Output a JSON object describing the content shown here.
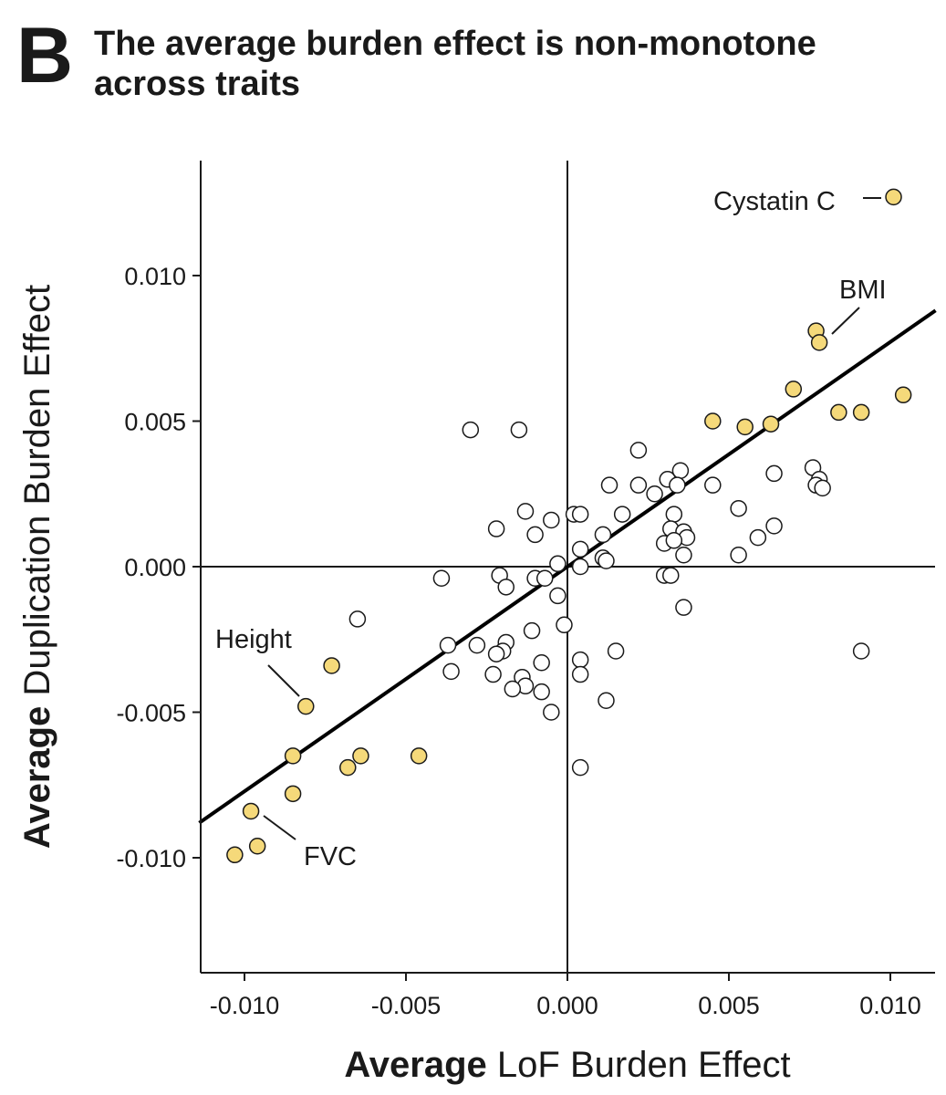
{
  "panel_label": "B",
  "title_lines": [
    "The average burden effect is non-monotone",
    "across traits"
  ],
  "colors": {
    "highlight": "#f5d97a",
    "normal": "#ffffff",
    "stroke": "#1a1a1a",
    "fit_line": "#000000"
  },
  "chart_data": {
    "type": "scatter",
    "title": "The average burden effect is non-monotone across traits",
    "xlabel_bold": "Average",
    "xlabel_rest": "LoF Burden Effect",
    "ylabel_bold": "Average",
    "ylabel_rest": "Duplication Burden Effect",
    "xlim": [
      -0.0114,
      0.0114
    ],
    "ylim": [
      -0.0139,
      0.0139
    ],
    "xticks": [
      -0.01,
      -0.005,
      0.0,
      0.005,
      0.01
    ],
    "xtick_labels": [
      "-0.010",
      "-0.005",
      "0.000",
      "0.005",
      "0.010"
    ],
    "yticks": [
      -0.01,
      -0.005,
      0.0,
      0.005,
      0.01
    ],
    "ytick_labels": [
      "-0.010",
      "-0.005",
      "0.000",
      "0.005",
      "0.010"
    ],
    "reference_lines": {
      "x": 0.0,
      "y": 0.0
    },
    "fit_line": {
      "x": [
        -0.0114,
        0.0114
      ],
      "y": [
        -0.0088,
        0.0088
      ]
    },
    "annotations": [
      {
        "text": "Cystatin C",
        "x": 0.0101,
        "y": 0.0127
      },
      {
        "text": "BMI",
        "x": 0.0078,
        "y": 0.0077
      },
      {
        "text": "Height",
        "x": -0.0081,
        "y": -0.0048
      },
      {
        "text": "FVC",
        "x": -0.0098,
        "y": -0.0084
      }
    ],
    "series": [
      {
        "role": "highlighted",
        "points": [
          [
            0.0101,
            0.0127
          ],
          [
            0.0077,
            0.0081
          ],
          [
            0.0078,
            0.0077
          ],
          [
            0.007,
            0.0061
          ],
          [
            0.0104,
            0.0059
          ],
          [
            0.0084,
            0.0053
          ],
          [
            0.0091,
            0.0053
          ],
          [
            0.0045,
            0.005
          ],
          [
            0.0055,
            0.0048
          ],
          [
            0.0063,
            0.0049
          ],
          [
            -0.0073,
            -0.0034
          ],
          [
            -0.0081,
            -0.0048
          ],
          [
            -0.0085,
            -0.0065
          ],
          [
            -0.0064,
            -0.0065
          ],
          [
            -0.0046,
            -0.0065
          ],
          [
            -0.0068,
            -0.0069
          ],
          [
            -0.0085,
            -0.0078
          ],
          [
            -0.0098,
            -0.0084
          ],
          [
            -0.0096,
            -0.0096
          ],
          [
            -0.0103,
            -0.0099
          ]
        ]
      },
      {
        "role": "other",
        "points": [
          [
            -0.003,
            0.0047
          ],
          [
            -0.0015,
            0.0047
          ],
          [
            0.0022,
            0.004
          ],
          [
            0.0035,
            0.0033
          ],
          [
            0.0031,
            0.003
          ],
          [
            0.0013,
            0.0028
          ],
          [
            0.0022,
            0.0028
          ],
          [
            0.0045,
            0.0028
          ],
          [
            0.0034,
            0.0028
          ],
          [
            0.0027,
            0.0025
          ],
          [
            0.0064,
            0.0032
          ],
          [
            0.0076,
            0.0034
          ],
          [
            0.0078,
            0.003
          ],
          [
            0.0077,
            0.0028
          ],
          [
            0.0079,
            0.0027
          ],
          [
            -0.0013,
            0.0019
          ],
          [
            0.0002,
            0.0018
          ],
          [
            0.0004,
            0.0018
          ],
          [
            0.0017,
            0.0018
          ],
          [
            0.0033,
            0.0018
          ],
          [
            0.0053,
            0.002
          ],
          [
            -0.0005,
            0.0016
          ],
          [
            -0.0022,
            0.0013
          ],
          [
            0.0011,
            0.0011
          ],
          [
            -0.001,
            0.0011
          ],
          [
            0.0032,
            0.0013
          ],
          [
            0.0036,
            0.0012
          ],
          [
            0.0037,
            0.001
          ],
          [
            0.003,
            0.0008
          ],
          [
            0.0033,
            0.0009
          ],
          [
            0.0059,
            0.001
          ],
          [
            0.0064,
            0.0014
          ],
          [
            0.0004,
            0.0006
          ],
          [
            -0.0003,
            0.0001
          ],
          [
            0.0011,
            0.0003
          ],
          [
            0.0012,
            0.0002
          ],
          [
            0.0036,
            0.0004
          ],
          [
            0.0053,
            0.0004
          ],
          [
            0.0004,
            0.0
          ],
          [
            -0.0039,
            -0.0004
          ],
          [
            -0.0021,
            -0.0003
          ],
          [
            -0.0019,
            -0.0007
          ],
          [
            -0.001,
            -0.0004
          ],
          [
            -0.0007,
            -0.0004
          ],
          [
            0.003,
            -0.0003
          ],
          [
            0.0032,
            -0.0003
          ],
          [
            -0.0003,
            -0.001
          ],
          [
            0.0036,
            -0.0014
          ],
          [
            -0.0065,
            -0.0018
          ],
          [
            -0.0001,
            -0.002
          ],
          [
            -0.0011,
            -0.0022
          ],
          [
            -0.0037,
            -0.0027
          ],
          [
            -0.0028,
            -0.0027
          ],
          [
            -0.0019,
            -0.0026
          ],
          [
            -0.002,
            -0.0029
          ],
          [
            -0.0022,
            -0.003
          ],
          [
            0.0015,
            -0.0029
          ],
          [
            0.0004,
            -0.0032
          ],
          [
            -0.0008,
            -0.0033
          ],
          [
            -0.0036,
            -0.0036
          ],
          [
            -0.0023,
            -0.0037
          ],
          [
            0.0004,
            -0.0037
          ],
          [
            -0.0014,
            -0.0038
          ],
          [
            -0.0013,
            -0.0041
          ],
          [
            -0.0017,
            -0.0042
          ],
          [
            -0.0008,
            -0.0043
          ],
          [
            0.0012,
            -0.0046
          ],
          [
            -0.0005,
            -0.005
          ],
          [
            0.0004,
            -0.0069
          ],
          [
            0.0091,
            -0.0029
          ]
        ]
      }
    ]
  }
}
